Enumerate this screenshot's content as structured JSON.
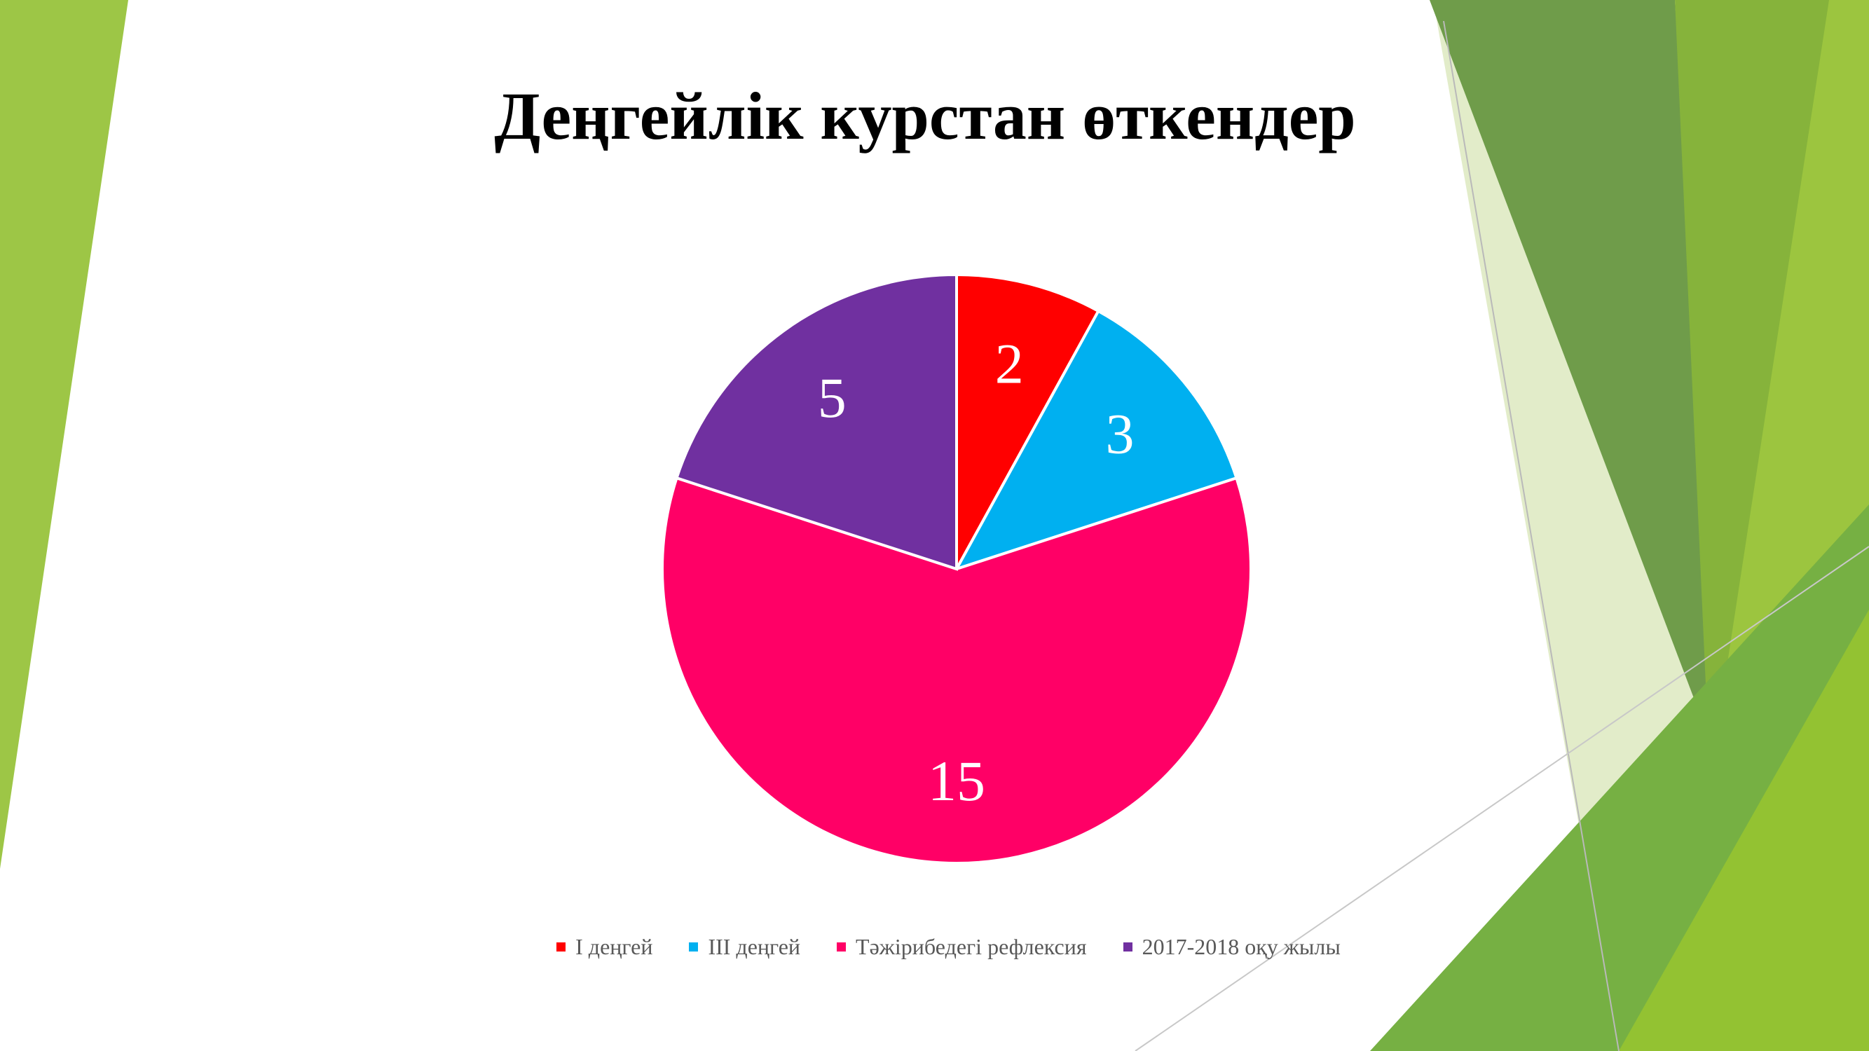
{
  "slide": {
    "colors": {
      "green_light": "#9dc646",
      "green_mid": "#7fb13a",
      "green_dark": "#5f8c3a",
      "green_pale": "#d9e9b8"
    }
  },
  "chart_data": {
    "type": "pie",
    "title": "Деңгейлік курстан өткендер",
    "categories": [
      "І деңгей",
      "ІІІ деңгей",
      "Тәжірибедегі рефлексия",
      "2017-2018  оқу жылы"
    ],
    "values": [
      2,
      3,
      15,
      5
    ],
    "colors": [
      "#ff0000",
      "#00b0f0",
      "#ff0066",
      "#7030a0"
    ],
    "data_labels": [
      "2",
      "3",
      "15",
      "5"
    ],
    "legend_position": "bottom",
    "start_angle": "12 o'clock, clockwise"
  }
}
